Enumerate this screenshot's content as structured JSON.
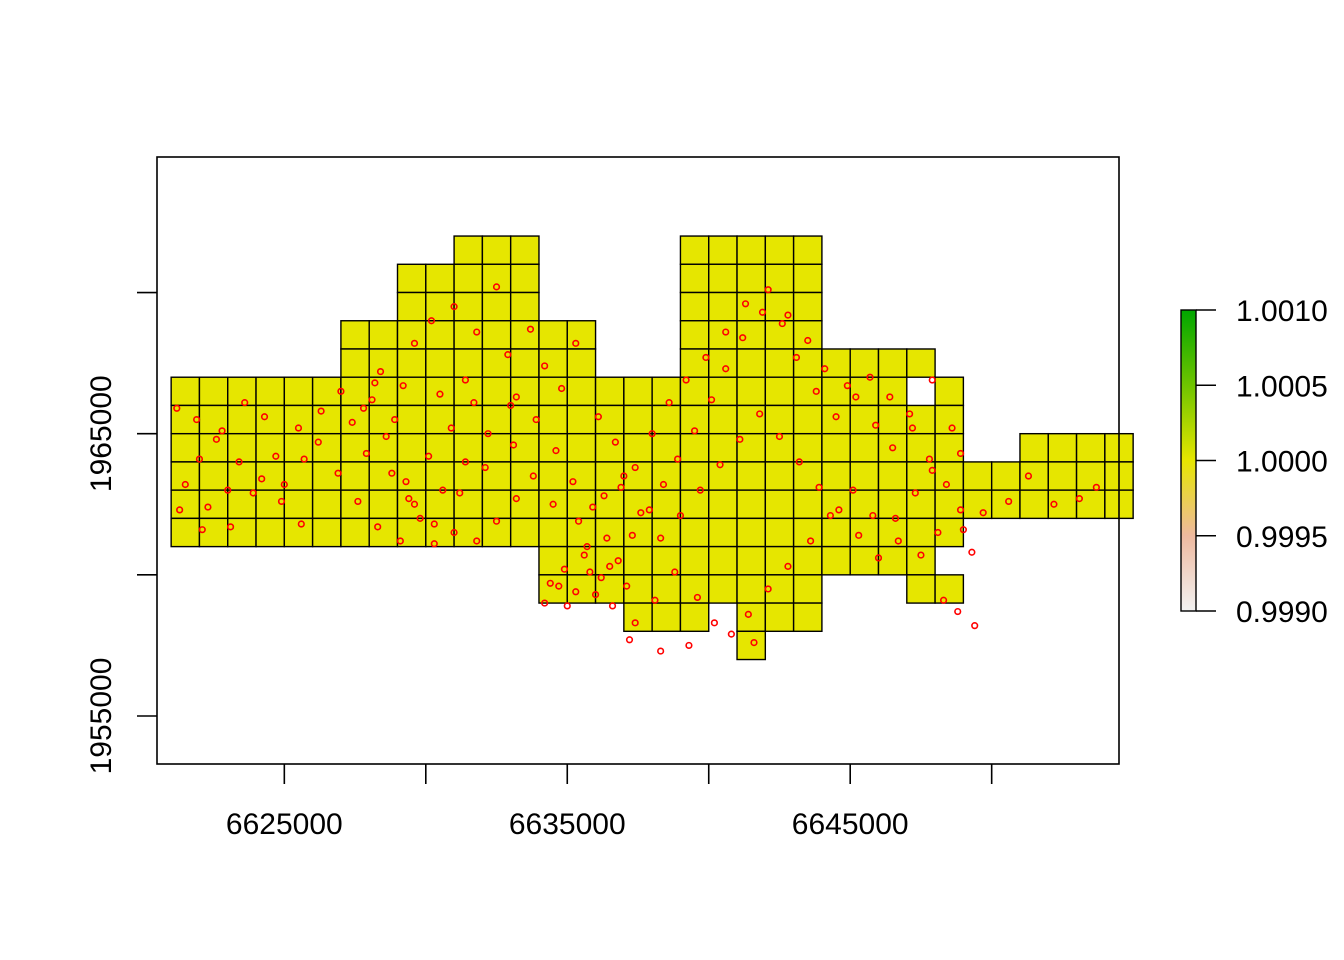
{
  "chart_data": {
    "type": "heatmap",
    "title": "",
    "xlabel": "",
    "ylabel": "",
    "xlim": [
      6620500,
      6654500
    ],
    "ylim": [
      1953300,
      1974800
    ],
    "grid": false,
    "cell_size": 1000,
    "cell_value": 1.0,
    "cell_color": "#E6E600",
    "cell_border_color": "#000000",
    "point_color": "#FF0000",
    "x_ticks": {
      "values": [
        6625000,
        6630000,
        6635000,
        6640000,
        6645000,
        6650000
      ],
      "labels": [
        "6625000",
        "",
        "6635000",
        "",
        "6645000",
        ""
      ]
    },
    "y_ticks": {
      "values": [
        1955000,
        1960000,
        1965000,
        1970000
      ],
      "labels": [
        "1955000",
        "",
        "1965000",
        ""
      ]
    },
    "legend": {
      "placement": "right",
      "min": 0.999,
      "max": 1.001,
      "ticks": [
        "0.9990",
        "0.9995",
        "1.0000",
        "1.0005",
        "1.0010"
      ],
      "colors": [
        "#F2F2F2",
        "#EEB99F",
        "#E6E600",
        "#6FC400",
        "#00A600"
      ]
    },
    "cell_rows": [
      {
        "y": 1971000,
        "x_ranges": [
          [
            6631000,
            6634000
          ],
          [
            6639000,
            6644000
          ]
        ]
      },
      {
        "y": 1970000,
        "x_ranges": [
          [
            6629000,
            6634000
          ],
          [
            6639000,
            6644000
          ]
        ]
      },
      {
        "y": 1969000,
        "x_ranges": [
          [
            6629000,
            6634000
          ],
          [
            6639000,
            6644000
          ]
        ]
      },
      {
        "y": 1968000,
        "x_ranges": [
          [
            6627000,
            6636000
          ],
          [
            6639000,
            6644000
          ]
        ]
      },
      {
        "y": 1967000,
        "x_ranges": [
          [
            6627000,
            6636000
          ],
          [
            6639000,
            6648000
          ]
        ]
      },
      {
        "y": 1966000,
        "x_ranges": [
          [
            6621000,
            6647000
          ],
          [
            6648000,
            6649000
          ]
        ]
      },
      {
        "y": 1965000,
        "x_ranges": [
          [
            6621000,
            6649000
          ]
        ]
      },
      {
        "y": 1964000,
        "x_ranges": [
          [
            6621000,
            6649000
          ],
          [
            6651000,
            6655000
          ]
        ]
      },
      {
        "y": 1963000,
        "x_ranges": [
          [
            6621000,
            6655000
          ]
        ]
      },
      {
        "y": 1962000,
        "x_ranges": [
          [
            6621000,
            6655000
          ]
        ]
      },
      {
        "y": 1961000,
        "x_ranges": [
          [
            6621000,
            6649000
          ]
        ]
      },
      {
        "y": 1960000,
        "x_ranges": [
          [
            6634000,
            6648000
          ]
        ]
      },
      {
        "y": 1959000,
        "x_ranges": [
          [
            6634000,
            6644000
          ],
          [
            6647000,
            6649000
          ]
        ]
      },
      {
        "y": 1958000,
        "x_ranges": [
          [
            6637000,
            6640000
          ],
          [
            6641000,
            6644000
          ]
        ]
      },
      {
        "y": 1957000,
        "x_ranges": [
          [
            6641000,
            6642000
          ]
        ]
      }
    ],
    "points": [
      [
        6631000,
        1969500
      ],
      [
        6632500,
        1970200
      ],
      [
        6631800,
        1968600
      ],
      [
        6630200,
        1969000
      ],
      [
        6629600,
        1968200
      ],
      [
        6628400,
        1967200
      ],
      [
        6629200,
        1966700
      ],
      [
        6630500,
        1966400
      ],
      [
        6631400,
        1966900
      ],
      [
        6632900,
        1967800
      ],
      [
        6633700,
        1968700
      ],
      [
        6633200,
        1966300
      ],
      [
        6634200,
        1967400
      ],
      [
        6634800,
        1966600
      ],
      [
        6635300,
        1968200
      ],
      [
        6628100,
        1966200
      ],
      [
        6627400,
        1965400
      ],
      [
        6627900,
        1964300
      ],
      [
        6628800,
        1963600
      ],
      [
        6629400,
        1962700
      ],
      [
        6630300,
        1961800
      ],
      [
        6631200,
        1962900
      ],
      [
        6632100,
        1963800
      ],
      [
        6633100,
        1964600
      ],
      [
        6633900,
        1965500
      ],
      [
        6634600,
        1964400
      ],
      [
        6635200,
        1963300
      ],
      [
        6635900,
        1962400
      ],
      [
        6636400,
        1961300
      ],
      [
        6635600,
        1960700
      ],
      [
        6634900,
        1960200
      ],
      [
        6634400,
        1959700
      ],
      [
        6635300,
        1959400
      ],
      [
        6636200,
        1959900
      ],
      [
        6636800,
        1960500
      ],
      [
        6637300,
        1961400
      ],
      [
        6637900,
        1962300
      ],
      [
        6638400,
        1963200
      ],
      [
        6638900,
        1964100
      ],
      [
        6639500,
        1965100
      ],
      [
        6640100,
        1966200
      ],
      [
        6640600,
        1967300
      ],
      [
        6641200,
        1968400
      ],
      [
        6641900,
        1969300
      ],
      [
        6642600,
        1968900
      ],
      [
        6643100,
        1967700
      ],
      [
        6643800,
        1966500
      ],
      [
        6644500,
        1965600
      ],
      [
        6645200,
        1966300
      ],
      [
        6645900,
        1965300
      ],
      [
        6646500,
        1964500
      ],
      [
        6647200,
        1965200
      ],
      [
        6647800,
        1964100
      ],
      [
        6648400,
        1963200
      ],
      [
        6648900,
        1962300
      ],
      [
        6648100,
        1961500
      ],
      [
        6647500,
        1960700
      ],
      [
        6646700,
        1961200
      ],
      [
        6645800,
        1962100
      ],
      [
        6645100,
        1963000
      ],
      [
        6644300,
        1962100
      ],
      [
        6643600,
        1961200
      ],
      [
        6642800,
        1960300
      ],
      [
        6642100,
        1959500
      ],
      [
        6641400,
        1958600
      ],
      [
        6640800,
        1957900
      ],
      [
        6641600,
        1957600
      ],
      [
        6640200,
        1958300
      ],
      [
        6639600,
        1959200
      ],
      [
        6638800,
        1960100
      ],
      [
        6638100,
        1959100
      ],
      [
        6637400,
        1958300
      ],
      [
        6636600,
        1958900
      ],
      [
        6636000,
        1959300
      ],
      [
        6635000,
        1958900
      ],
      [
        6634200,
        1959000
      ],
      [
        6637200,
        1957700
      ],
      [
        6638300,
        1957300
      ],
      [
        6639300,
        1957500
      ],
      [
        6648300,
        1959100
      ],
      [
        6648800,
        1958700
      ],
      [
        6649400,
        1958200
      ],
      [
        6649300,
        1960800
      ],
      [
        6649000,
        1961600
      ],
      [
        6649700,
        1962200
      ],
      [
        6650600,
        1962600
      ],
      [
        6651300,
        1963500
      ],
      [
        6652200,
        1962500
      ],
      [
        6653100,
        1962700
      ],
      [
        6653700,
        1963100
      ],
      [
        6621200,
        1965900
      ],
      [
        6621900,
        1965500
      ],
      [
        6622600,
        1964800
      ],
      [
        6623400,
        1964000
      ],
      [
        6624200,
        1963400
      ],
      [
        6624900,
        1962600
      ],
      [
        6625600,
        1961800
      ],
      [
        6621500,
        1963200
      ],
      [
        6622300,
        1962400
      ],
      [
        6623100,
        1961700
      ],
      [
        6623900,
        1962900
      ],
      [
        6624700,
        1964200
      ],
      [
        6625500,
        1965200
      ],
      [
        6626200,
        1964700
      ],
      [
        6626900,
        1963600
      ],
      [
        6627600,
        1962600
      ],
      [
        6628300,
        1961700
      ],
      [
        6629100,
        1961200
      ],
      [
        6629800,
        1962000
      ],
      [
        6630600,
        1963000
      ],
      [
        6631400,
        1964000
      ],
      [
        6632200,
        1965000
      ],
      [
        6633000,
        1966000
      ],
      [
        6631700,
        1966100
      ],
      [
        6630900,
        1965200
      ],
      [
        6630100,
        1964200
      ],
      [
        6629300,
        1963300
      ],
      [
        6628600,
        1964900
      ],
      [
        6627800,
        1965900
      ],
      [
        6627000,
        1966500
      ],
      [
        6626300,
        1965800
      ],
      [
        6625700,
        1964100
      ],
      [
        6625000,
        1963200
      ],
      [
        6624300,
        1965600
      ],
      [
        6623600,
        1966100
      ],
      [
        6622800,
        1965100
      ],
      [
        6622000,
        1964100
      ],
      [
        6621300,
        1962300
      ],
      [
        6622100,
        1961600
      ],
      [
        6623000,
        1963000
      ],
      [
        6636100,
        1965600
      ],
      [
        6636700,
        1964700
      ],
      [
        6637400,
        1963800
      ],
      [
        6638000,
        1965000
      ],
      [
        6638600,
        1966100
      ],
      [
        6639200,
        1966900
      ],
      [
        6639900,
        1967700
      ],
      [
        6640600,
        1968600
      ],
      [
        6641300,
        1969600
      ],
      [
        6642100,
        1970100
      ],
      [
        6642800,
        1969200
      ],
      [
        6643500,
        1968300
      ],
      [
        6644100,
        1967300
      ],
      [
        6644900,
        1966700
      ],
      [
        6645700,
        1967000
      ],
      [
        6646400,
        1966300
      ],
      [
        6647100,
        1965700
      ],
      [
        6647900,
        1966900
      ],
      [
        6648600,
        1965200
      ],
      [
        6648900,
        1964300
      ],
      [
        6636900,
        1963100
      ],
      [
        6637600,
        1962200
      ],
      [
        6638300,
        1961300
      ],
      [
        6639000,
        1962100
      ],
      [
        6639700,
        1963000
      ],
      [
        6640400,
        1963900
      ],
      [
        6641100,
        1964800
      ],
      [
        6641800,
        1965700
      ],
      [
        6642500,
        1964900
      ],
      [
        6643200,
        1964000
      ],
      [
        6643900,
        1963100
      ],
      [
        6644600,
        1962300
      ],
      [
        6645300,
        1961400
      ],
      [
        6646000,
        1960600
      ],
      [
        6646600,
        1962000
      ],
      [
        6647300,
        1962900
      ],
      [
        6647900,
        1963700
      ],
      [
        6635400,
        1961900
      ],
      [
        6636300,
        1962800
      ],
      [
        6637000,
        1963500
      ],
      [
        6634500,
        1962500
      ],
      [
        6633800,
        1963500
      ],
      [
        6633200,
        1962700
      ],
      [
        6632500,
        1961900
      ],
      [
        6631800,
        1961200
      ],
      [
        6631000,
        1961500
      ],
      [
        6630300,
        1961100
      ],
      [
        6629600,
        1962500
      ],
      [
        6628900,
        1965500
      ],
      [
        6628200,
        1966800
      ],
      [
        6635800,
        1960100
      ],
      [
        6636500,
        1960300
      ],
      [
        6637100,
        1959600
      ],
      [
        6634700,
        1959600
      ],
      [
        6635700,
        1961000
      ]
    ]
  }
}
